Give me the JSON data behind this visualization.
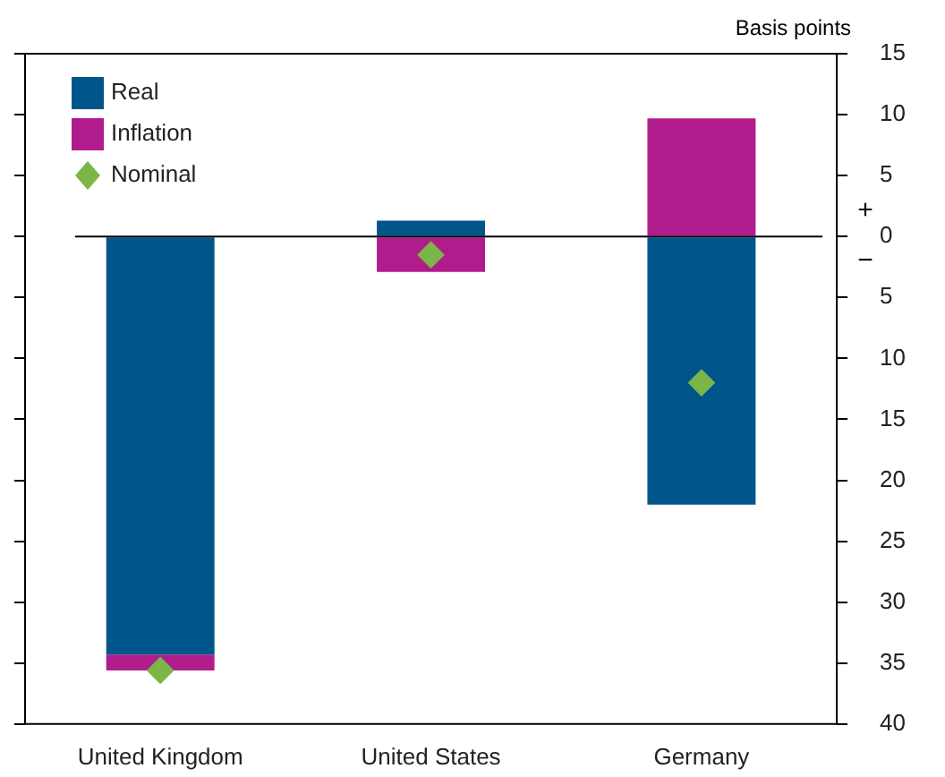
{
  "chart_data": {
    "type": "bar",
    "stacked": true,
    "ylabel": "Basis points",
    "categories": [
      "United Kingdom",
      "United States",
      "Germany"
    ],
    "series": [
      {
        "name": "Real",
        "color": "#00558b",
        "values": [
          -34.3,
          1.3,
          -22
        ]
      },
      {
        "name": "Inflation",
        "color": "#b01c8c",
        "values": [
          -1.3,
          -2.9,
          9.7
        ]
      },
      {
        "name": "Nominal",
        "type": "scatter",
        "marker": "diamond",
        "color": "#7ab648",
        "values": [
          -35.6,
          -1.5,
          -12
        ]
      }
    ],
    "ylim": [
      -40,
      15
    ],
    "yticks": [
      15,
      10,
      5,
      0,
      {
        "value": -5,
        "label": "5"
      },
      {
        "value": -10,
        "label": "10"
      },
      {
        "value": -15,
        "label": "15"
      },
      {
        "value": -20,
        "label": "20"
      },
      {
        "value": -25,
        "label": "25"
      },
      {
        "value": -30,
        "label": "30"
      },
      {
        "value": -35,
        "label": "35"
      },
      {
        "value": -40,
        "label": "40"
      }
    ],
    "ref_lines": [
      {
        "axis": "y",
        "value": 0,
        "color": "#000000"
      }
    ],
    "annotations": [
      "+",
      "−"
    ],
    "grid": false,
    "legend": "top left"
  }
}
